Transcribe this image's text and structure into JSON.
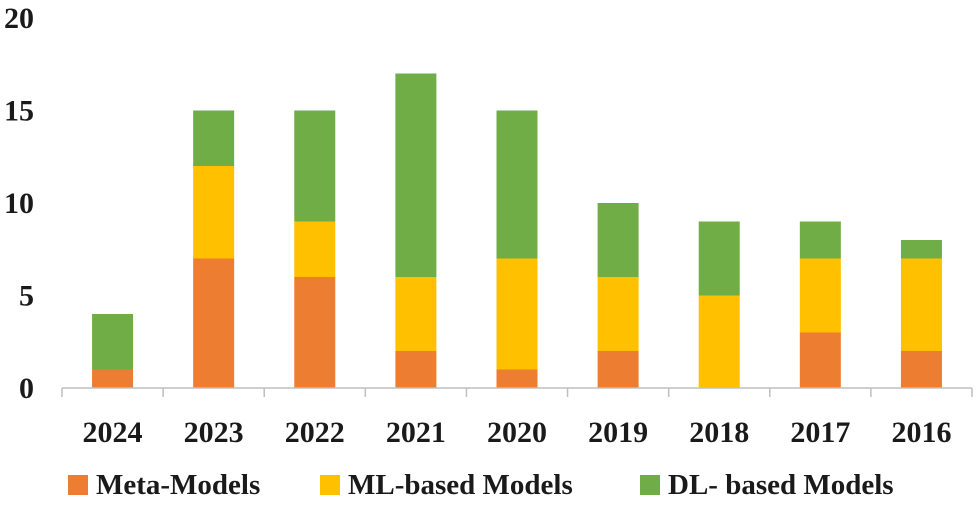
{
  "chart_data": {
    "type": "bar",
    "stacked": true,
    "title": "",
    "xlabel": "",
    "ylabel": "",
    "categories": [
      "2024",
      "2023",
      "2022",
      "2021",
      "2020",
      "2019",
      "2018",
      "2017",
      "2016"
    ],
    "series": [
      {
        "name": "Meta-Models",
        "color": "#ED7D31",
        "values": [
          1,
          7,
          6,
          2,
          1,
          2,
          0,
          3,
          2
        ]
      },
      {
        "name": "ML-based Models",
        "color": "#FFC000",
        "values": [
          0,
          5,
          3,
          4,
          6,
          4,
          5,
          4,
          5
        ]
      },
      {
        "name": "DL- based Models",
        "color": "#70AD47",
        "values": [
          3,
          3,
          6,
          11,
          8,
          4,
          4,
          2,
          1
        ]
      }
    ],
    "ylim": [
      0,
      20
    ],
    "yticks": [
      0,
      5,
      10,
      15,
      20
    ],
    "grid": false,
    "legend_position": "bottom"
  }
}
